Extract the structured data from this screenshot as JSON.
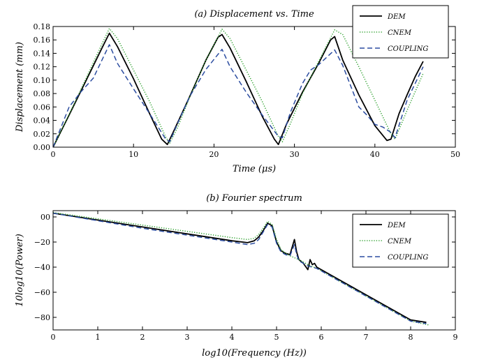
{
  "chart_data": [
    {
      "type": "line",
      "title": "(a) Displacement vs. Time",
      "xlabel": "Time (μs)",
      "ylabel": "Displacement (mm)",
      "xlim": [
        0,
        50
      ],
      "ylim": [
        0,
        0.18
      ],
      "xticks": [
        0,
        10,
        20,
        30,
        40,
        50
      ],
      "yticks": [
        0.0,
        0.02,
        0.04,
        0.06,
        0.08,
        0.1,
        0.12,
        0.14,
        0.16,
        0.18
      ],
      "xtick_labels": [
        "0",
        "10",
        "20",
        "30",
        "40",
        "50"
      ],
      "ytick_labels": [
        "0.00",
        "0.02",
        "0.04",
        "0.06",
        "0.08",
        "0.10",
        "0.12",
        "0.14",
        "0.16",
        "0.18"
      ],
      "grid": false,
      "legend_position": "top-right",
      "series": [
        {
          "name": "DEM",
          "color": "#000000",
          "style": "solid",
          "x": [
            0,
            2,
            4,
            6,
            7,
            8,
            10,
            12,
            13.5,
            14.2,
            15,
            17,
            19,
            20.5,
            21,
            22,
            24,
            26,
            27.5,
            28,
            29,
            31,
            33,
            34.5,
            35,
            36,
            38,
            40,
            41.5,
            42,
            43,
            44,
            45,
            46
          ],
          "y": [
            0,
            0.048,
            0.097,
            0.146,
            0.17,
            0.15,
            0.102,
            0.05,
            0.012,
            0.004,
            0.024,
            0.076,
            0.13,
            0.164,
            0.168,
            0.148,
            0.098,
            0.046,
            0.012,
            0.004,
            0.034,
            0.082,
            0.125,
            0.16,
            0.165,
            0.13,
            0.078,
            0.032,
            0.01,
            0.012,
            0.05,
            0.078,
            0.105,
            0.128
          ]
        },
        {
          "name": "CNEM",
          "color": "#2ca02c",
          "style": "dotted",
          "x": [
            0,
            2,
            4,
            6,
            7,
            8,
            10,
            12,
            14,
            14.5,
            15.5,
            17,
            19,
            21,
            22,
            24,
            26,
            28,
            28.5,
            29.5,
            31,
            33,
            35,
            36,
            38,
            40,
            42,
            42.5,
            44,
            46
          ],
          "y": [
            0,
            0.049,
            0.1,
            0.152,
            0.177,
            0.162,
            0.115,
            0.068,
            0.015,
            0.006,
            0.03,
            0.075,
            0.13,
            0.176,
            0.162,
            0.115,
            0.068,
            0.016,
            0.008,
            0.035,
            0.08,
            0.128,
            0.175,
            0.168,
            0.12,
            0.07,
            0.02,
            0.012,
            0.055,
            0.11
          ]
        },
        {
          "name": "COUPLING",
          "color": "#2b4ca0",
          "style": "dashed",
          "x": [
            0,
            2,
            3.5,
            5,
            7,
            8,
            10,
            12,
            14,
            14.5,
            15.5,
            17,
            19,
            21,
            22,
            24,
            26,
            28,
            28.5,
            29.5,
            31,
            32,
            33,
            35,
            36,
            38,
            39,
            40,
            41,
            42,
            42.5,
            44,
            46
          ],
          "y": [
            0,
            0.06,
            0.083,
            0.103,
            0.153,
            0.125,
            0.087,
            0.05,
            0.012,
            0.008,
            0.036,
            0.076,
            0.116,
            0.146,
            0.12,
            0.082,
            0.048,
            0.016,
            0.014,
            0.052,
            0.095,
            0.115,
            0.123,
            0.145,
            0.122,
            0.06,
            0.048,
            0.034,
            0.03,
            0.022,
            0.014,
            0.07,
            0.12
          ]
        }
      ]
    },
    {
      "type": "line",
      "title": "(b) Fourier spectrum",
      "xlabel": "log10(Frequency (Hz))",
      "ylabel": "10log10(Power)",
      "xlim": [
        0,
        9
      ],
      "ylim": [
        -90,
        5
      ],
      "xticks": [
        0,
        1,
        2,
        3,
        4,
        5,
        6,
        7,
        8,
        9
      ],
      "yticks": [
        0,
        -20,
        -40,
        -60,
        -80
      ],
      "xtick_labels": [
        "0",
        "1",
        "2",
        "3",
        "4",
        "5",
        "6",
        "7",
        "8",
        "9"
      ],
      "ytick_labels": [
        "00",
        "−20",
        "−40",
        "−60",
        "−80"
      ],
      "grid": false,
      "legend_position": "top-right",
      "series": [
        {
          "name": "DEM",
          "color": "#000000",
          "style": "solid",
          "x": [
            0,
            1,
            2,
            3,
            4,
            4.35,
            4.5,
            4.6,
            4.7,
            4.8,
            4.9,
            5.0,
            5.1,
            5.2,
            5.3,
            5.4,
            5.45,
            5.5,
            5.6,
            5.7,
            5.75,
            5.8,
            5.85,
            5.9,
            6.0,
            6.5,
            7,
            7.5,
            8,
            8.35
          ],
          "y": [
            3,
            -2.5,
            -8,
            -13.5,
            -19,
            -20.5,
            -19,
            -16,
            -11,
            -5,
            -7,
            -20,
            -27,
            -29,
            -30,
            -18,
            -28,
            -34,
            -37,
            -42,
            -34,
            -38,
            -37,
            -40,
            -42,
            -52,
            -62,
            -72,
            -82,
            -84
          ]
        },
        {
          "name": "CNEM",
          "color": "#2ca02c",
          "style": "dotted",
          "x": [
            0,
            1,
            2,
            3,
            4,
            4.35,
            4.5,
            4.6,
            4.7,
            4.8,
            4.9,
            5.0,
            5.1,
            5.2,
            5.3,
            5.5,
            5.7,
            5.9,
            6.0,
            6.5,
            7,
            7.5,
            8,
            8.4
          ],
          "y": [
            3.5,
            -1.5,
            -6.5,
            -11.5,
            -16.5,
            -18,
            -17,
            -14,
            -9,
            -3.5,
            -6,
            -18,
            -26,
            -29,
            -31,
            -34,
            -38,
            -41,
            -43,
            -53,
            -63,
            -73,
            -83,
            -86
          ]
        },
        {
          "name": "COUPLING",
          "color": "#2b4ca0",
          "style": "dashed",
          "x": [
            0,
            1,
            2,
            3,
            4,
            4.35,
            4.5,
            4.6,
            4.7,
            4.8,
            4.9,
            5.0,
            5.1,
            5.2,
            5.3,
            5.4,
            5.45,
            5.5,
            5.7,
            5.9,
            6.0,
            6.5,
            7,
            7.5,
            8,
            8.35
          ],
          "y": [
            3,
            -3,
            -9,
            -14.5,
            -20,
            -22,
            -21,
            -18,
            -12,
            -6,
            -8,
            -21,
            -28,
            -30,
            -31,
            -22,
            -30,
            -35,
            -39,
            -41,
            -43,
            -53,
            -63,
            -73,
            -83,
            -85
          ]
        }
      ]
    }
  ]
}
